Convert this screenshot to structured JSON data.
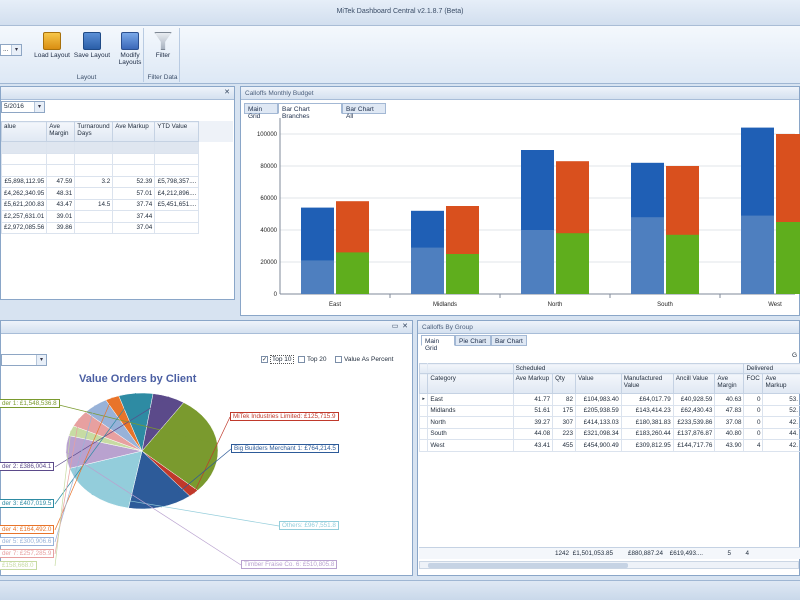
{
  "app": {
    "title": "MiTek Dashboard Central v2.1.8.7 (Beta)"
  },
  "ribbon": {
    "combo_value": "...",
    "layout_group": "Layout",
    "filter_group": "Filter Data",
    "load_layout": "Load Layout",
    "save_layout": "Save Layout",
    "modify_layouts_1": "Modify",
    "modify_layouts_2": "Layouts",
    "filter": "Filter"
  },
  "left_grid": {
    "date_value": "5/2016",
    "headers": [
      "alue",
      "Ave Margin",
      "Turnaround Days",
      "Ave Markup",
      "YTD Value"
    ],
    "rows": [
      [
        "",
        "",
        "",
        "",
        ""
      ],
      [
        "",
        "",
        "",
        "",
        ""
      ],
      [
        "",
        "",
        "",
        "",
        ""
      ],
      [
        "£5,898,112.95",
        "47.59",
        "3.2",
        "52.39",
        "£5,798,357...."
      ],
      [
        "£4,262,340.95",
        "48.31",
        "",
        "57.01",
        "£4,212,896...."
      ],
      [
        "£5,621,200.83",
        "43.47",
        "14.5",
        "37.74",
        "£5,451,651...."
      ],
      [
        "£2,257,631.01",
        "39.01",
        "",
        "37.44",
        ""
      ],
      [
        "£2,972,085.56",
        "39.86",
        "",
        "37.04",
        ""
      ]
    ]
  },
  "budget_panel": {
    "title": "Calloffs Monthly Budget",
    "tabs": [
      "Main Grid",
      "Bar Chart Branches",
      "Bar Chart All"
    ],
    "active_tab": 1
  },
  "chart_data": {
    "type": "bar",
    "categories": [
      "East",
      "Midlands",
      "North",
      "South",
      "West"
    ],
    "series": [
      {
        "values": [
          54000,
          52000,
          90000,
          82000,
          104000
        ],
        "color": "#1f5fb5"
      },
      {
        "values": [
          58000,
          55000,
          83000,
          80000,
          100000
        ],
        "color": "#d9501e"
      }
    ],
    "inner_series": [
      {
        "values": [
          21000,
          29000,
          40000,
          48000,
          49000
        ],
        "color": "#4e7fbf"
      },
      {
        "values": [
          26000,
          25000,
          38000,
          37000,
          45000
        ],
        "color": "#5fae1d"
      }
    ],
    "yticks": [
      0,
      20000,
      40000,
      60000,
      80000,
      100000
    ],
    "ylim": [
      0,
      110000
    ]
  },
  "pie_panel": {
    "title": "Value Orders by Client",
    "top10_label": "Top 10",
    "top20_label": "Top 20",
    "percent_label": "Value As Percent",
    "top10_checked": "✓",
    "labels": [
      "der 1: £1,548,536.8",
      "MiTek Industries Limited: £125,715.9",
      "Big Builders Merchant 1: £764,214.5",
      "der 2: £386,004.1",
      "der 3: £407,019.5",
      "der 4: £164,492.0",
      "Others: £967,551.8",
      "der 5: £300,906.6",
      "der 7: £257,285.9",
      "£158,668.0",
      "Timber Fraise Co. 6: £510,805.8"
    ]
  },
  "pie_data": {
    "type": "pie",
    "slices": [
      {
        "value": 1548536.8,
        "color": "#7a9a2e"
      },
      {
        "value": 125715.9,
        "color": "#c0392b"
      },
      {
        "value": 764214.5,
        "color": "#2d5b99"
      },
      {
        "value": 967551.8,
        "color": "#93cddb"
      },
      {
        "value": 510805.8,
        "color": "#b9a2cf"
      },
      {
        "value": 158668.0,
        "color": "#c7dba3"
      },
      {
        "value": 257285.9,
        "color": "#e7a0a0"
      },
      {
        "value": 300906.6,
        "color": "#98b2d8"
      },
      {
        "value": 164492.0,
        "color": "#e8742a"
      },
      {
        "value": 407019.5,
        "color": "#2e8ba3"
      },
      {
        "value": 386004.1,
        "color": "#5b4a8a"
      }
    ]
  },
  "group_panel": {
    "title": "Calloffs By Group",
    "tabs": [
      "Main Grid",
      "Pie Chart",
      "Bar Chart"
    ],
    "scheduled": "Scheduled",
    "delivered": "Delivered",
    "g": "G",
    "headers": [
      "Category",
      "Ave Markup",
      "Qty",
      "Value",
      "Manufactured Value",
      "Ancill Value",
      "Ave Margin",
      "FOC",
      "Ave Markup"
    ],
    "rows": [
      [
        "East",
        "41.77",
        "82",
        "£104,983.40",
        "£64,017.79",
        "£40,928.59",
        "40.63",
        "0",
        "53."
      ],
      [
        "Midlands",
        "51.61",
        "175",
        "£205,938.59",
        "£143,414.23",
        "£62,430.43",
        "47.83",
        "0",
        "52."
      ],
      [
        "North",
        "39.27",
        "307",
        "£414,133.03",
        "£180,381.83",
        "£233,539.86",
        "37.08",
        "0",
        "42."
      ],
      [
        "South",
        "44.08",
        "223",
        "£321,098.34",
        "£183,260.44",
        "£137,876.87",
        "40.80",
        "0",
        "44."
      ],
      [
        "West",
        "43.41",
        "455",
        "£454,900.49",
        "£309,812.95",
        "£144,717.76",
        "43.90",
        "4",
        "42."
      ]
    ],
    "footer": [
      "1242",
      "£1,501,053.85",
      "£880,887.24",
      "£619,493....",
      "5",
      "4"
    ]
  }
}
